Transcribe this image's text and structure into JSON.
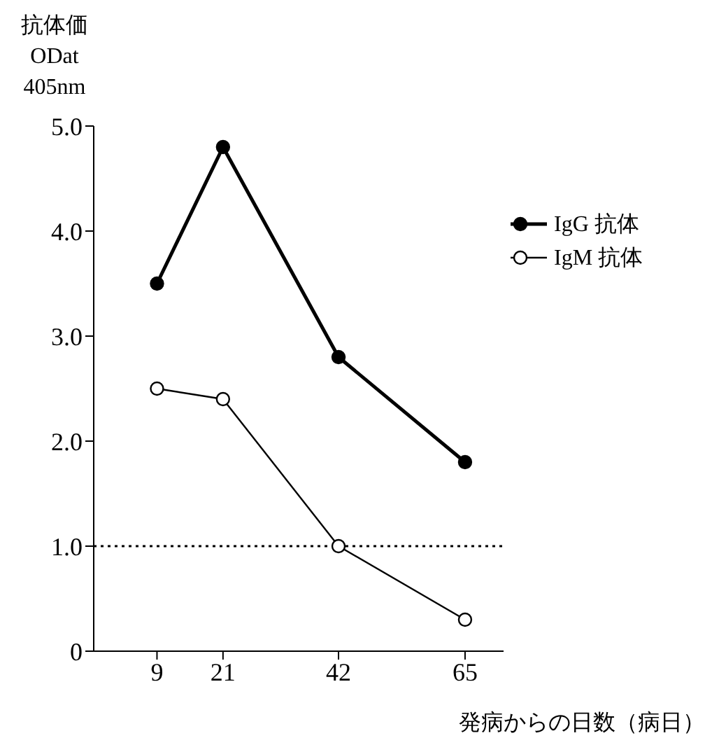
{
  "chart_data": {
    "type": "line",
    "ylabel": "抗体価\nODat\n405nm",
    "xlabel": "発病からの日数（病日）",
    "x": [
      9,
      21,
      42,
      65
    ],
    "xlim": [
      -2.5,
      72
    ],
    "xticks": [
      9,
      21,
      42,
      65
    ],
    "ylim": [
      0,
      5
    ],
    "yticks": [
      {
        "value": 0,
        "label": "0"
      },
      {
        "value": 1,
        "label": "1.0"
      },
      {
        "value": 2,
        "label": "2.0"
      },
      {
        "value": 3,
        "label": "3.0"
      },
      {
        "value": 4,
        "label": "4.0"
      },
      {
        "value": 5,
        "label": "5.0"
      }
    ],
    "series": [
      {
        "name": "IgG 抗体",
        "color": "#000000",
        "values": [
          3.5,
          4.8,
          2.8,
          1.8
        ]
      },
      {
        "name": "IgM 抗体",
        "color": "#000000",
        "values": [
          2.5,
          2.4,
          1.0,
          0.3
        ]
      }
    ],
    "ref_lines": [
      {
        "axis": "y",
        "value": 1,
        "color": "#000000",
        "line_style": "dotted"
      }
    ],
    "marker": "circle",
    "grid": false,
    "legend": "top right"
  }
}
